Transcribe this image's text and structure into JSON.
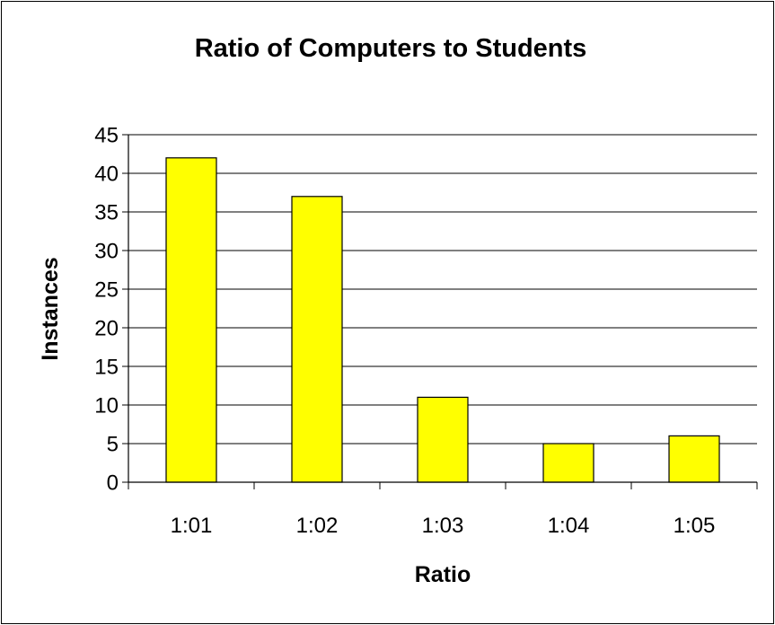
{
  "chart_data": {
    "type": "bar",
    "title": "Ratio of Computers to Students",
    "xlabel": "Ratio",
    "ylabel": "Instances",
    "categories": [
      "1:01",
      "1:02",
      "1:03",
      "1:04",
      "1:05"
    ],
    "values": [
      42,
      37,
      11,
      5,
      6
    ],
    "ylim": [
      0,
      45
    ],
    "ytick_step": 5,
    "grid": "horizontal",
    "legend": "none",
    "colors": {
      "bar_fill": "#ffff00",
      "bar_stroke": "#000000",
      "grid": "#000000",
      "background": "#ffffff"
    }
  }
}
